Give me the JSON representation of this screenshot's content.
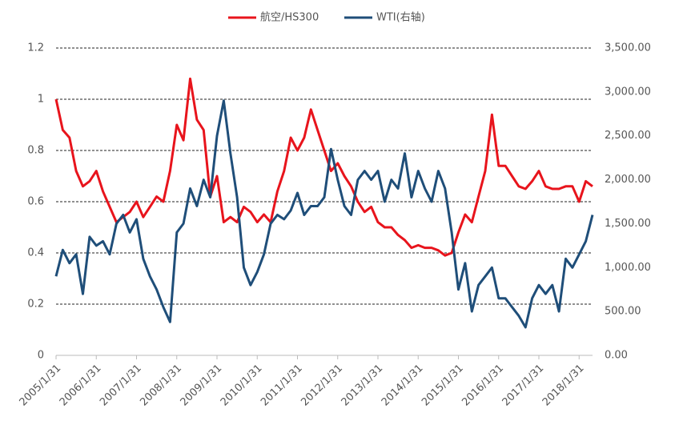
{
  "chart_data": {
    "type": "line",
    "categories": [
      "2005/1/31",
      null,
      null,
      null,
      null,
      null,
      "2006/1/31",
      null,
      null,
      null,
      null,
      null,
      "2007/1/31",
      null,
      null,
      null,
      null,
      null,
      "2008/1/31",
      null,
      null,
      null,
      null,
      null,
      "2009/1/31",
      null,
      null,
      null,
      null,
      null,
      "2010/1/31",
      null,
      null,
      null,
      null,
      null,
      "2011/1/31",
      null,
      null,
      null,
      null,
      null,
      "2012/1/31",
      null,
      null,
      null,
      null,
      null,
      "2013/1/31",
      null,
      null,
      null,
      null,
      null,
      "2014/1/31",
      null,
      null,
      null,
      null,
      null,
      "2015/1/31",
      null,
      null,
      null,
      null,
      null,
      "2016/1/31",
      null,
      null,
      null,
      null,
      null,
      "2017/1/31",
      null,
      null,
      null,
      null,
      null,
      "2018/1/31",
      null,
      null
    ],
    "series": [
      {
        "name": "航空/HS300",
        "color": "#e8141c",
        "values": [
          1.0,
          0.88,
          0.85,
          0.72,
          0.66,
          0.68,
          0.72,
          0.64,
          0.58,
          0.52,
          0.54,
          0.56,
          0.6,
          0.54,
          0.58,
          0.62,
          0.6,
          0.72,
          0.9,
          0.84,
          1.08,
          0.92,
          0.88,
          0.62,
          0.7,
          0.52,
          0.54,
          0.52,
          0.58,
          0.56,
          0.52,
          0.55,
          0.52,
          0.64,
          0.72,
          0.85,
          0.8,
          0.85,
          0.96,
          0.88,
          0.8,
          0.72,
          0.75,
          0.7,
          0.66,
          0.6,
          0.56,
          0.58,
          0.52,
          0.5,
          0.5,
          0.47,
          0.45,
          0.42,
          0.43,
          0.42,
          0.42,
          0.41,
          0.39,
          0.4,
          0.48,
          0.55,
          0.52,
          0.62,
          0.72,
          0.94,
          0.74,
          0.74,
          0.7,
          0.66,
          0.65,
          0.68,
          0.72,
          0.66,
          0.65,
          0.65,
          0.66,
          0.66,
          0.6,
          0.68,
          0.66
        ]
      },
      {
        "name": "WTI(右轴)",
        "color": "#1f4e79",
        "axis": "y2",
        "values": [
          900,
          1200,
          1050,
          1150,
          700,
          1350,
          1250,
          1300,
          1150,
          1500,
          1600,
          1400,
          1550,
          1100,
          900,
          750,
          550,
          380,
          1400,
          1500,
          1900,
          1700,
          2000,
          1800,
          2500,
          2900,
          2300,
          1800,
          1000,
          800,
          950,
          1150,
          1500,
          1600,
          1550,
          1650,
          1850,
          1600,
          1700,
          1700,
          1800,
          2350,
          2000,
          1700,
          1600,
          2000,
          2100,
          2000,
          2100,
          1750,
          2000,
          1900,
          2300,
          1800,
          2100,
          1900,
          1750,
          2100,
          1900,
          1400,
          750,
          1050,
          500,
          800,
          900,
          1000,
          650,
          650,
          550,
          450,
          320,
          650,
          800,
          700,
          800,
          500,
          1100,
          1000,
          1150,
          1300,
          1600
        ]
      }
    ],
    "ylim": [
      0,
      1.2
    ],
    "yticks": [
      0,
      0.2,
      0.4,
      0.6,
      0.8,
      1,
      1.2
    ],
    "y2lim": [
      0,
      3500
    ],
    "y2ticks": [
      {
        "value": 0,
        "label": "0.00"
      },
      {
        "value": 500,
        "label": "500.00"
      },
      {
        "value": 1000,
        "label": "1,000.00"
      },
      {
        "value": 1500,
        "label": "1,500.00"
      },
      {
        "value": 2000,
        "label": "2,000.00"
      },
      {
        "value": 2500,
        "label": "2,500.00"
      },
      {
        "value": 3000,
        "label": "3,000.00"
      },
      {
        "value": 3500,
        "label": "3,500.00"
      }
    ],
    "grid": true,
    "legend": "top"
  }
}
